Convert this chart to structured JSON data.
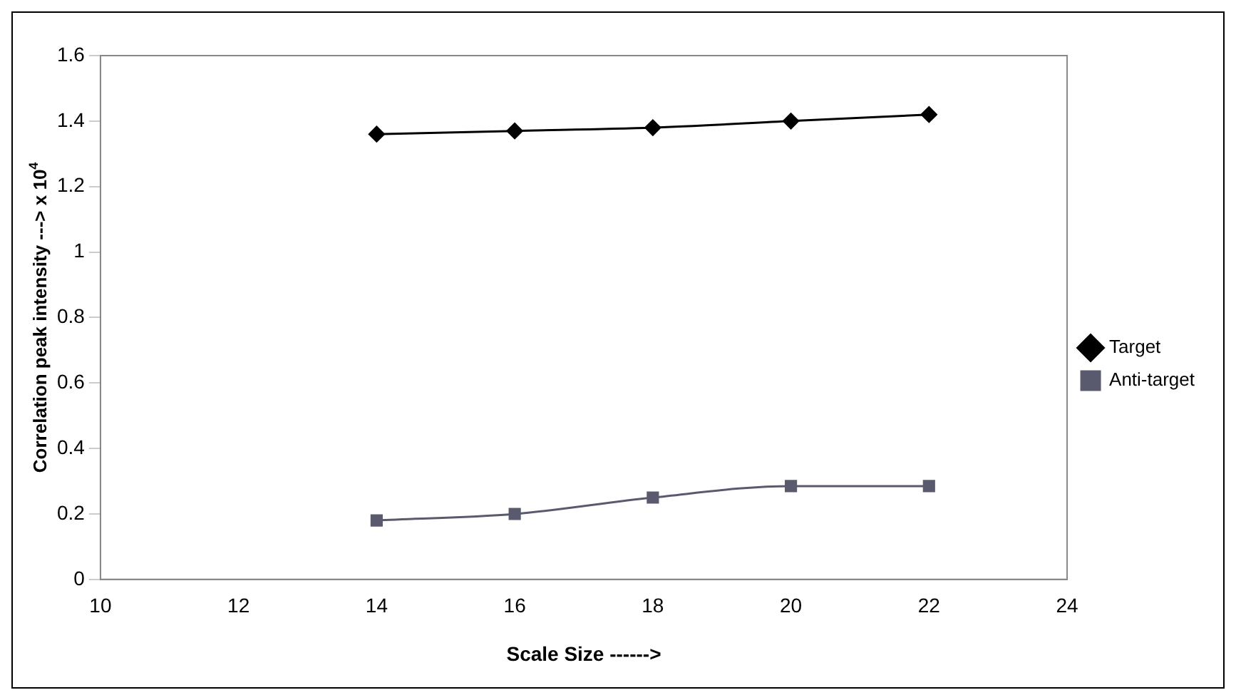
{
  "chart_data": {
    "type": "line",
    "xlabel": "Scale Size ------>",
    "ylabel": "Correlation peak intensity ---> x 10$^{4}$",
    "x": [
      14,
      16,
      18,
      20,
      22
    ],
    "series": [
      {
        "name": "Target",
        "color": "#000000",
        "marker": "diamond",
        "values": [
          1.36,
          1.37,
          1.38,
          1.4,
          1.42
        ]
      },
      {
        "name": "Anti-target",
        "color": "#5a5a6e",
        "marker": "square",
        "values": [
          0.18,
          0.2,
          0.25,
          0.285,
          0.285
        ]
      }
    ],
    "xlim": [
      10,
      24
    ],
    "xticks": [
      10,
      12,
      14,
      16,
      18,
      20,
      22,
      24
    ],
    "ylim": [
      0,
      1.6
    ],
    "yticks": [
      0,
      0.2,
      0.4,
      0.6,
      0.8,
      1,
      1.2,
      1.4,
      1.6
    ],
    "grid": false,
    "legend": "right",
    "line_style": "solid"
  }
}
